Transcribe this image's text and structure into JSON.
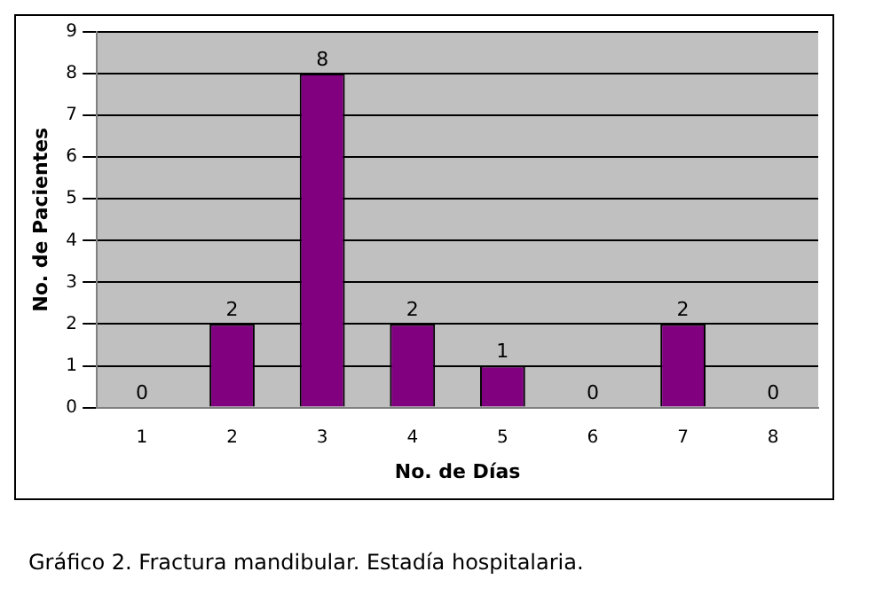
{
  "chart_data": {
    "type": "bar",
    "categories": [
      "1",
      "2",
      "3",
      "4",
      "5",
      "6",
      "7",
      "8"
    ],
    "values": [
      0,
      2,
      8,
      2,
      1,
      0,
      2,
      0
    ],
    "color": "#800080",
    "xlabel": "No. de Días",
    "ylabel": "No. de Pacientes",
    "ylim": [
      0,
      9
    ],
    "yticks": [
      0,
      1,
      2,
      3,
      4,
      5,
      6,
      7,
      8,
      9
    ],
    "grid": "y",
    "legend": false,
    "data_labels": true,
    "annotations": [
      "Gráfico 2. Fractura mandibular. Estadía hospitalaria."
    ]
  }
}
